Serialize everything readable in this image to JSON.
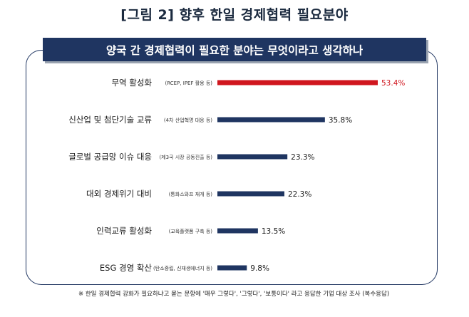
{
  "figure_title": "[그림 2] 향후 한일 경제협력 필요분야",
  "banner_title": "양국 간 경제협력이 필요한 분야는 무엇이라고 생각하나",
  "footnote": "※ 한일 경제협력 강화가 필요하냐고 묻는 문항에 '매우 그렇다', '그렇다', '보통이다' 라고 응답한 기업 대상 조사 (복수응답)",
  "chart_data": {
    "type": "bar",
    "orientation": "horizontal",
    "title": "양국 간 경제협력이 필요한 분야는 무엇이라고 생각하나",
    "categories": [
      "무역 활성화",
      "신산업 및 첨단기술 교류",
      "글로벌 공급망 이슈 대응",
      "대외 경제위기 대비",
      "인력교류 활성화",
      "ESG 경영 확산"
    ],
    "sublabels": [
      "(RCEP, IPEF 활용 등)",
      "(4차 산업혁명 대응 등)",
      "(제3국 시장 공동진출 등)",
      "(통화스와프 재개 등)",
      "(교육플랫폼 구축 등)",
      "(탄소중립, 신재생에너지 등)"
    ],
    "values": [
      53.4,
      35.8,
      23.3,
      22.3,
      13.5,
      9.8
    ],
    "value_labels": [
      "53.4%",
      "35.8%",
      "23.3%",
      "22.3%",
      "13.5%",
      "9.8%"
    ],
    "highlight_index": 0,
    "colors": {
      "highlight": "#d0161e",
      "default": "#1f3561"
    },
    "grid": false,
    "legend": "none",
    "xlim": [
      0,
      53.4
    ]
  }
}
